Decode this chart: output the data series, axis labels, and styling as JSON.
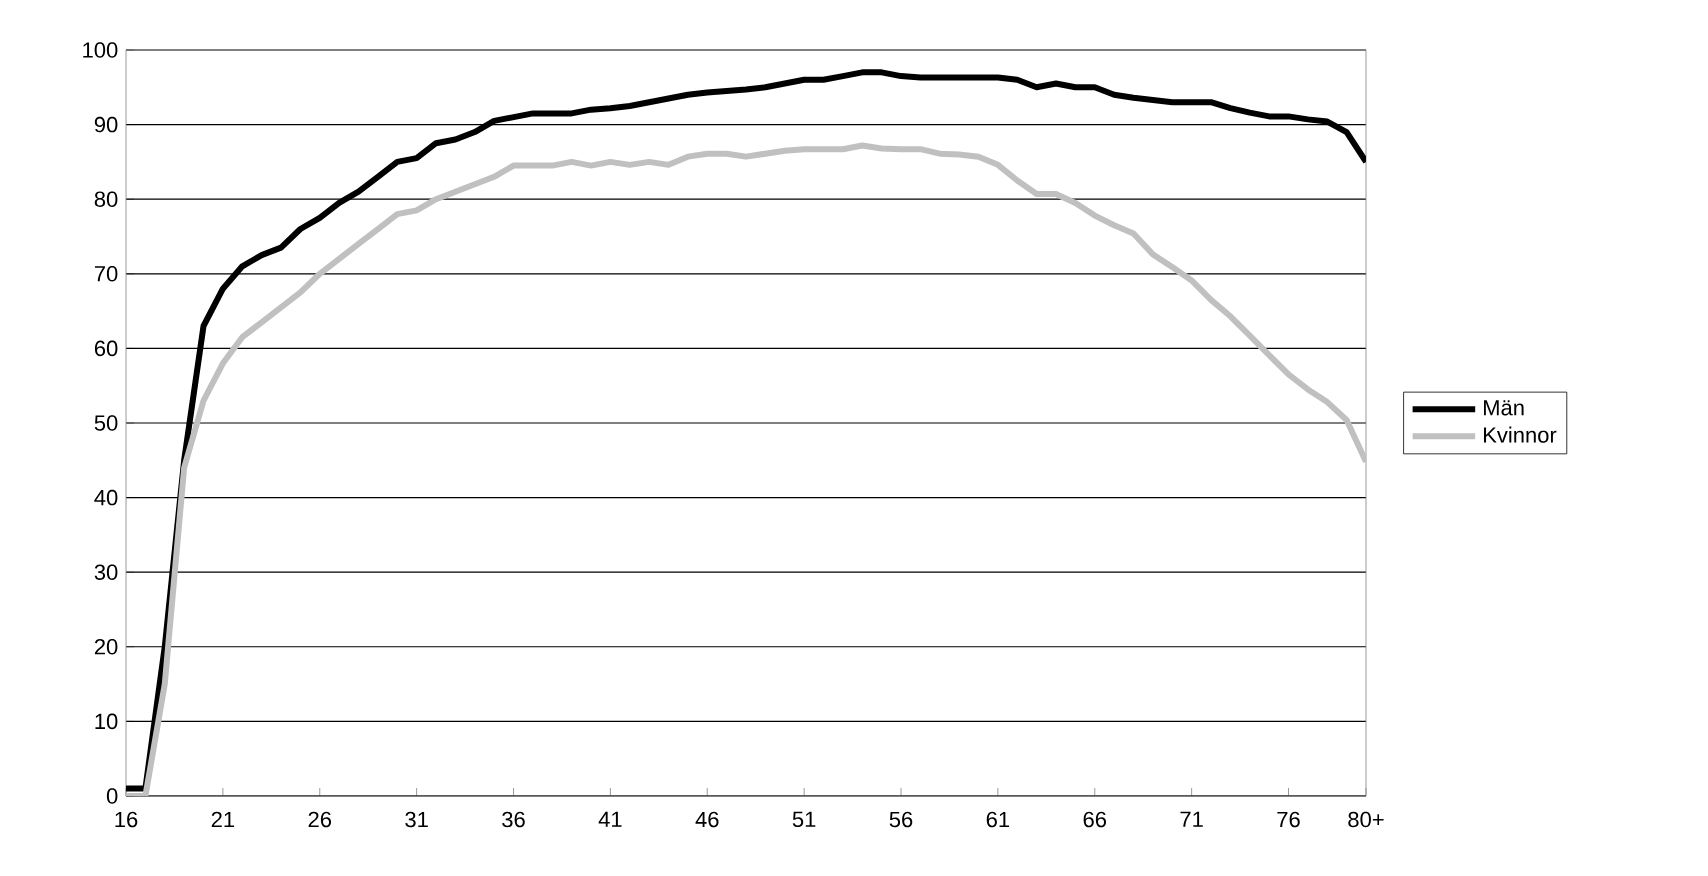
{
  "chart_data": {
    "type": "line",
    "categories": [
      "16",
      null,
      null,
      null,
      null,
      "21",
      null,
      null,
      null,
      null,
      "26",
      null,
      null,
      null,
      null,
      "31",
      null,
      null,
      null,
      null,
      "36",
      null,
      null,
      null,
      null,
      "41",
      null,
      null,
      null,
      null,
      "46",
      null,
      null,
      null,
      null,
      "51",
      null,
      null,
      null,
      null,
      "56",
      null,
      null,
      null,
      null,
      "61",
      null,
      null,
      null,
      null,
      "66",
      null,
      null,
      null,
      null,
      "71",
      null,
      null,
      null,
      null,
      "76",
      null,
      null,
      null,
      "80+"
    ],
    "series": [
      {
        "name": "Män",
        "color": "#000000",
        "values": [
          1,
          1,
          20,
          45,
          63,
          68,
          71,
          72.5,
          73.5,
          76,
          77.5,
          79.5,
          81,
          83,
          85,
          85.5,
          87.5,
          88,
          89,
          90.5,
          91,
          91.5,
          91.5,
          91.5,
          92,
          92.2,
          92.5,
          93,
          93.5,
          94,
          94.3,
          94.5,
          94.7,
          95,
          95.5,
          96,
          96,
          96.5,
          97,
          97,
          96.5,
          96.3,
          96.3,
          96.3,
          96.3,
          96.3,
          96,
          95,
          95.5,
          95,
          95,
          94,
          93.6,
          93.3,
          93,
          93,
          93,
          92.2,
          91.6,
          91.1,
          91.1,
          90.7,
          90.4,
          89,
          85
        ]
      },
      {
        "name": "Kvinnor",
        "color": "#c0c0c0",
        "values": [
          0,
          0,
          15,
          44,
          53,
          58,
          61.5,
          63.5,
          65.5,
          67.5,
          70,
          72,
          74,
          76,
          78,
          78.5,
          80,
          81,
          82,
          83,
          84.5,
          84.5,
          84.5,
          85,
          84.5,
          85,
          84.6,
          85,
          84.6,
          85.7,
          86.1,
          86.1,
          85.7,
          86.1,
          86.5,
          86.7,
          86.7,
          86.7,
          87.2,
          86.8,
          86.7,
          86.7,
          86.1,
          86,
          85.7,
          84.6,
          82.5,
          80.7,
          80.7,
          79.5,
          77.8,
          76.5,
          75.4,
          72.6,
          70.9,
          69.1,
          66.5,
          64.3,
          61.7,
          59.1,
          56.5,
          54.5,
          52.8,
          50.4,
          44.8
        ]
      }
    ],
    "ylim": [
      0,
      100
    ],
    "yticks": [
      0,
      10,
      20,
      30,
      40,
      50,
      60,
      70,
      80,
      90,
      100
    ],
    "grid": "y",
    "legend": "right",
    "marker": "none",
    "line_style": "solid"
  }
}
